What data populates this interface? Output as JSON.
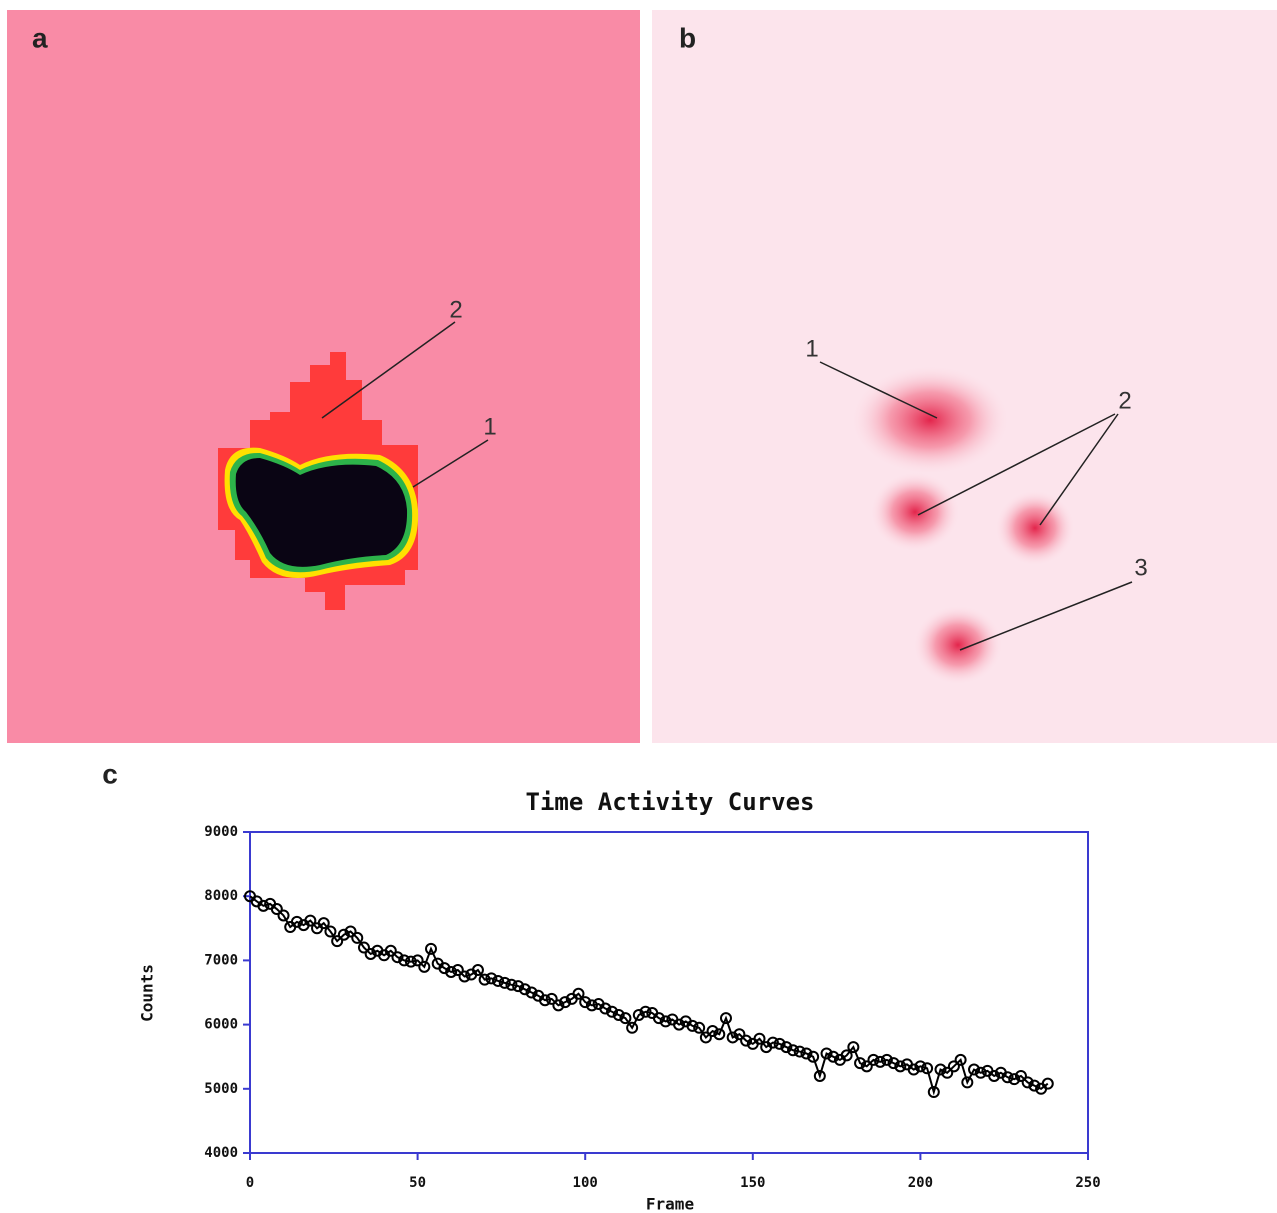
{
  "panels": {
    "a": {
      "label": "a",
      "annotations": [
        "2",
        "1"
      ]
    },
    "b": {
      "label": "b",
      "annotations": [
        "1",
        "2",
        "3"
      ]
    },
    "c": {
      "label": "c"
    }
  },
  "chart_data": {
    "type": "line",
    "title": "Time Activity Curves",
    "xlabel": "Frame",
    "ylabel": "Counts",
    "color": "#000000",
    "marker": "circle",
    "xlim": [
      0,
      250
    ],
    "xticks": [
      0,
      50,
      100,
      150,
      200,
      250
    ],
    "ylim": [
      4000,
      9000
    ],
    "yticks": [
      4000,
      5000,
      6000,
      7000,
      8000,
      9000
    ],
    "x": [
      0,
      2,
      4,
      6,
      8,
      10,
      12,
      14,
      16,
      18,
      20,
      22,
      24,
      26,
      28,
      30,
      32,
      34,
      36,
      38,
      40,
      42,
      44,
      46,
      48,
      50,
      52,
      54,
      56,
      58,
      60,
      62,
      64,
      66,
      68,
      70,
      72,
      74,
      76,
      78,
      80,
      82,
      84,
      86,
      88,
      90,
      92,
      94,
      96,
      98,
      100,
      102,
      104,
      106,
      108,
      110,
      112,
      114,
      116,
      118,
      120,
      122,
      124,
      126,
      128,
      130,
      132,
      134,
      136,
      138,
      140,
      142,
      144,
      146,
      148,
      150,
      152,
      154,
      156,
      158,
      160,
      162,
      164,
      166,
      168,
      170,
      172,
      174,
      176,
      178,
      180,
      182,
      184,
      186,
      188,
      190,
      192,
      194,
      196,
      198,
      200,
      202,
      204,
      206,
      208,
      210,
      212,
      214,
      216,
      218,
      220,
      222,
      224,
      226,
      228,
      230,
      232,
      234,
      236,
      238
    ],
    "values": [
      8000,
      7920,
      7850,
      7880,
      7800,
      7700,
      7520,
      7600,
      7550,
      7620,
      7500,
      7580,
      7450,
      7300,
      7400,
      7450,
      7350,
      7200,
      7100,
      7150,
      7080,
      7150,
      7050,
      7000,
      6980,
      7000,
      6900,
      7180,
      6950,
      6880,
      6820,
      6850,
      6750,
      6780,
      6850,
      6700,
      6720,
      6680,
      6650,
      6620,
      6600,
      6550,
      6500,
      6450,
      6380,
      6400,
      6300,
      6350,
      6400,
      6480,
      6350,
      6300,
      6320,
      6250,
      6200,
      6150,
      6100,
      5950,
      6150,
      6200,
      6180,
      6100,
      6050,
      6080,
      6000,
      6050,
      5980,
      5950,
      5800,
      5900,
      5850,
      6100,
      5800,
      5850,
      5750,
      5700,
      5780,
      5650,
      5720,
      5700,
      5650,
      5600,
      5580,
      5550,
      5500,
      5200,
      5550,
      5500,
      5450,
      5520,
      5650,
      5400,
      5350,
      5450,
      5420,
      5450,
      5400,
      5350,
      5380,
      5300,
      5350,
      5320,
      4950,
      5300,
      5250,
      5350,
      5450,
      5100,
      5300,
      5250,
      5280,
      5200,
      5250,
      5180,
      5150,
      5200,
      5100,
      5050,
      5000,
      5080
    ]
  }
}
